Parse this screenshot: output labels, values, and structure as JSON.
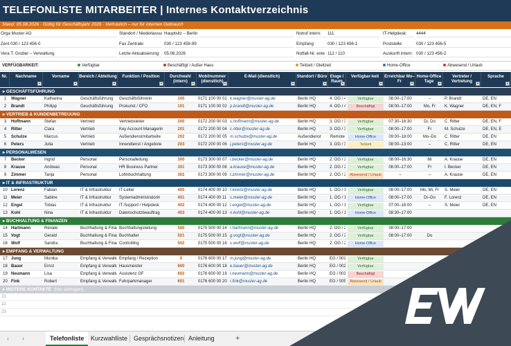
{
  "title": "TELEFONLISTE MITARBEITER  |  Internes Kontaktverzeichnis",
  "subtitle": "Stand: 05.08.2026  ·  Gültig für Geschäftsjahr 2026  ·  Vertraulich – nur für internen Gebrauch",
  "info": {
    "org_label": "Orga Muster AG",
    "standort_label": "Standort / Niederlassung",
    "standort_value": "Hauptsitz – Berlin",
    "notruf_label": "Notruf intern:",
    "notruf_value": "111",
    "helpdesk_label": "IT-Helpdesk:",
    "helpdesk_value": "4444",
    "zent_label": "Zent",
    "zent_value": "030 / 123 456-0",
    "fax_label": "Fax Zentrale:",
    "fax_value": "030 / 123 456-99",
    "empfang_label": "Empfang:",
    "empfang_value": "030 / 123 456-1",
    "poststelle_label": "Poststelle:",
    "poststelle_value": "030 / 123 456-5",
    "verantw_label": "Vera",
    "verantw_value": "T. Gruber – Verwaltung",
    "aktual_label": "Letzte Aktualisierung:",
    "aktual_value": "05.08.2026",
    "notfall_label": "Notfall-Nr. exte",
    "notfall_value": "112 / 110",
    "auskunft_label": "Auskunft intern:",
    "auskunft_value": "030 / 123 456-2"
  },
  "legend": {
    "label": "VERFÜGBARKEIT:",
    "items": [
      {
        "text": "Verfügbar",
        "color": "#3a8a3a"
      },
      {
        "text": "Beschäftigt / Außer Haus",
        "color": "#c0392b"
      },
      {
        "text": "Teilzeit / Gleitzeit",
        "color": "#d4a017"
      },
      {
        "text": "Home-Office",
        "color": "#2e6fb5"
      },
      {
        "text": "Abwesend / Urlaub",
        "color": "#c0392b"
      }
    ]
  },
  "columns": [
    "Nr.",
    "Nachname",
    "Vorname",
    "Bereich / Abteilung",
    "Funktion / Position",
    "Durchwahl (intern)",
    "Mobilnummer (dienstlich)",
    "E-Mail (dienstlich)",
    "Standort / Büro",
    "Etage / Raum",
    "Verfügbar-keit",
    "Erreichbar Mo–Fr",
    "Home-Office Tage",
    "Vertreter / Vertretung",
    "Sprache"
  ],
  "status_colors": {
    "Verfügbar": {
      "bg": "#dff0d8",
      "fg": "#2d6a2d"
    },
    "Beschäftigt": {
      "bg": "#f6d5d5",
      "fg": "#a02020"
    },
    "Home-Office": {
      "bg": "#dce8f7",
      "fg": "#1f4f86"
    },
    "Teilzeit": {
      "bg": "#fbefc8",
      "fg": "#8a6a00"
    },
    "Abwesend / Urlaub": {
      "bg": "#fbe3c8",
      "fg": "#a0500a"
    }
  },
  "sections": [
    {
      "name": "GESCHÄFTSFÜHRUNG",
      "color": "#2b3e55",
      "rows": [
        [
          "1",
          "Wagner",
          "Katharina",
          "Geschäftsführung",
          "Geschäftsführerin",
          "100",
          "0171 100 00 01",
          "k.wagner@muster-ag.de",
          "Berlin HQ",
          "4. OG / 401",
          "Verfügbar",
          "08:00–17:00",
          "–",
          "P. Brandt",
          "DE, EN"
        ],
        [
          "2",
          "Brandt",
          "Philipp",
          "Geschäftsführung",
          "Prokurist / CFO",
          "101",
          "0171 100 00 02",
          "p.brandt@muster-ag.de",
          "Berlin HQ",
          "4. OG / 402",
          "Beschäftigt",
          "08:00–17:00",
          "Mo, Fr",
          "K. Wagner",
          "DE, EN, F"
        ]
      ]
    },
    {
      "name": "VERTRIEB & KUNDENBETREUUNG",
      "color": "#c05a18",
      "rows": [
        [
          "3",
          "Hoffmann",
          "Stefan",
          "Vertrieb",
          "Vertriebsleiter",
          "200",
          "0172 200 00 03",
          "s.hoffmann@muster-ag.de",
          "Berlin HQ",
          "3. OG / 312",
          "Verfügbar",
          "07:30–16:30",
          "Di, Do",
          "C. Ritter",
          "DE, EN, F"
        ],
        [
          "4",
          "Ritter",
          "Clara",
          "Vertrieb",
          "Key Account Managerin",
          "201",
          "0172 200 00 04",
          "c.ritter@muster-ag.de",
          "Berlin HQ",
          "3. OG / 314",
          "Verfügbar",
          "08:00–17:00",
          "Fr",
          "M. Schulze",
          "DE, EN, E"
        ],
        [
          "5",
          "Schulze",
          "Marcus",
          "Vertrieb",
          "Außendienstmitarbeite",
          "202",
          "0172 200 00 05",
          "m.schulze@muster-ag.de",
          "Außendienst",
          "Remote",
          "Home-Office",
          "09:00–18:00",
          "Mo–Do",
          "C. Ritter",
          "DE, EN"
        ],
        [
          "6",
          "Peters",
          "Julia",
          "Vertrieb",
          "Innendienst / Angebote",
          "203",
          "0172 200 00 06",
          "j.peters@muster-ag.de",
          "Berlin HQ",
          "3. OG / 316",
          "Teilzeit",
          "08:00–13:00",
          "–",
          "C. Ritter",
          "DE, EN"
        ]
      ]
    },
    {
      "name": "PERSONALWESEN",
      "color": "#1f4f72",
      "rows": [
        [
          "7",
          "Becker",
          "Ingrid",
          "Personal",
          "Personalleitung",
          "300",
          "0173 300 00 07",
          "i.becker@muster-ag.de",
          "Berlin HQ",
          "2. OG / 210",
          "Verfügbar",
          "08:00–16:30",
          "Mi",
          "A. Krause",
          "DE, EN"
        ],
        [
          "8",
          "Krause",
          "Andreas",
          "Personal",
          "HR Business Partner",
          "301",
          "0173 300 00 08",
          "a.krause@muster-ag.de",
          "Berlin HQ",
          "2. OG / 211",
          "Verfügbar",
          "08:00–17:00",
          "Fr",
          "I. Becker",
          "DE, EN"
        ],
        [
          "9",
          "Zimmer",
          "Tanja",
          "Personal",
          "Lohnbuchhaltung",
          "302",
          "0173 300 00 09",
          "t.zimmer@muster-ag.de",
          "Berlin HQ",
          "2. OG / 212",
          "Abwesend / Urlaub",
          "–",
          "–",
          "A. Krause",
          "DE, EN"
        ]
      ]
    },
    {
      "name": "IT & INFRASTRUKTUR",
      "color": "#1a4a6b",
      "rows": [
        [
          "10",
          "Lorenz",
          "Fabian",
          "IT & Infrastruktur",
          "IT-Leiter",
          "400",
          "0174 400 00 10",
          "f.lorenz@muster-ag.de",
          "Berlin HQ",
          "1. OG / 105",
          "Verfügbar",
          "08:00–17:00",
          "Mo, Mi, Fr",
          "S. Meier",
          "DE, EN"
        ],
        [
          "11",
          "Meier",
          "Sabine",
          "IT & Infrastruktur",
          "Systemadministratorin",
          "401",
          "0174 400 00 11",
          "s.meier@muster-ag.de",
          "Berlin HQ",
          "1. OG / 106",
          "Home-Office",
          "08:00–17:00",
          "Di–Do",
          "F. Lorenz",
          "DE, EN"
        ],
        [
          "12",
          "Engel",
          "Tobias",
          "IT & Infrastruktur",
          "IT-Support / Helpdesk",
          "402",
          "0174 400 00 12",
          "t.engel@muster-ag.de",
          "Berlin HQ",
          "1. OG / 107",
          "Verfügbar",
          "07:00–16:00",
          "–",
          "S. Meier",
          "DE, EN"
        ],
        [
          "13",
          "Kohl",
          "Nina",
          "IT & Infrastruktur",
          "Datenschutzbeauftrag",
          "403",
          "0174 400 00 13",
          "n.kohl@muster-ag.de",
          "Berlin HQ",
          "1. OG / 108",
          "Home-Office",
          "08:30–17:00",
          "",
          "",
          ""
        ]
      ]
    },
    {
      "name": "BUCHHALTUNG & FINANZEN",
      "color": "#2e7d3a",
      "rows": [
        [
          "14",
          "Hartmann",
          "Renate",
          "Buchhaltung & Finan",
          "Buchhaltungsleitung",
          "500",
          "0175 500 00 14",
          "r.hartmann@muster-ag.de",
          "Berlin HQ",
          "2. OG / 220",
          "Verfügbar",
          "08:00–17:00",
          "",
          "",
          ""
        ],
        [
          "15",
          "Vogt",
          "Gerald",
          "Buchhaltung & Finan",
          "Buchhalter",
          "501",
          "0175 500 00 15",
          "g.vogt@muster-ag.de",
          "Berlin HQ",
          "2. OG / 221",
          "Verfügbar",
          "08:00–17:00",
          "Do",
          "",
          ""
        ],
        [
          "16",
          "Wolf",
          "Sandra",
          "Buchhaltung & Finan",
          "Controlling",
          "502",
          "0175 500 00 16",
          "s.wolf@muster-ag.de",
          "Berlin HQ",
          "2. OG / 222",
          "Home-Office",
          "",
          "",
          "",
          ""
        ]
      ]
    },
    {
      "name": "EMPFANG & VERWALTUNG",
      "color": "#6a4a32",
      "rows": [
        [
          "17",
          "Jung",
          "Monika",
          "Empfang & Verwaltur",
          "Empfang / Rezeption",
          "0",
          "0176 600 00 17",
          "m.jung@muster-ag.de",
          "Berlin HQ",
          "EG / 001",
          "Verfügbar",
          "",
          "",
          "",
          ""
        ],
        [
          "18",
          "Bauer",
          "Ernst",
          "Empfang & Verwaltur",
          "Hausmeister",
          "600",
          "0176 600 00 18",
          "e.bauer@muster-ag.de",
          "Berlin HQ",
          "EG / 002",
          "Verfügbar",
          "",
          "",
          "",
          ""
        ],
        [
          "19",
          "Neumann",
          "Lisa",
          "Empfang & Verwaltur",
          "Assistenz GF",
          "602",
          "0176 600 00 19",
          "l.neumann@muster-ag.de",
          "Berlin HQ",
          "EG / 003",
          "Beschäftigt",
          "",
          "",
          "",
          ""
        ],
        [
          "20",
          "Fink",
          "Robert",
          "Empfang & Verwaltur",
          "Fuhrparkmanager",
          "601",
          "0176 600 00 20",
          "r.fink@muster-ag.de",
          "Berlin HQ",
          "EG / 005",
          "Abwesend / Urlaub",
          "",
          "",
          "",
          ""
        ]
      ]
    }
  ],
  "extra_section": {
    "name": "WEITERE KONTAKTE",
    "hint": "(hier eintragen)",
    "color": "#c9ced4"
  },
  "empty_rows": [
    "21",
    "22",
    "23"
  ],
  "sheet_tabs": {
    "active": "Telefonliste",
    "others": [
      "Kurzwahlliste",
      "Gesprächsnotizen",
      "Anleitung"
    ],
    "add": "+",
    "prev": "‹",
    "next": "›"
  },
  "overlay": {
    "logo_color": "#ffffff",
    "triangle_color": "#3d4a55"
  }
}
